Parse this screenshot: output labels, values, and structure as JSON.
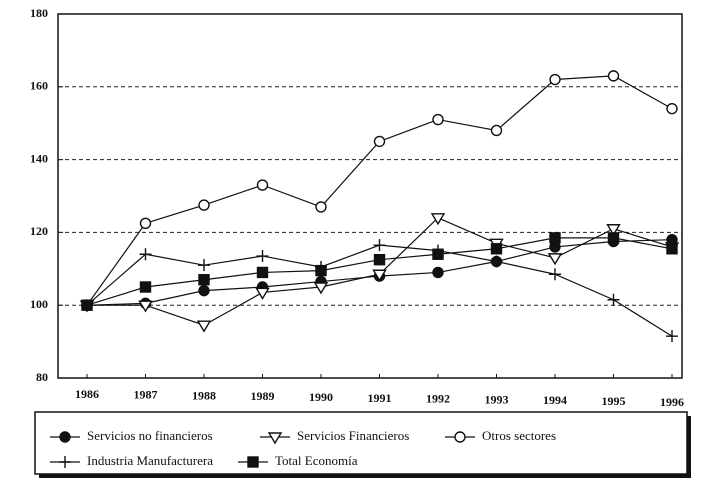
{
  "chart_data": {
    "type": "line",
    "categories": [
      "1986",
      "1987",
      "1988",
      "1989",
      "1990",
      "1991",
      "1992",
      "1993",
      "1994",
      "1995",
      "1996"
    ],
    "ylim": [
      80,
      180
    ],
    "yticks": [
      80,
      100,
      120,
      140,
      160,
      180
    ],
    "grid": true,
    "legend": "bottom",
    "series": [
      {
        "name": "Servicios no financieros",
        "color": "#111111",
        "marker": "filled-circle",
        "values": [
          100,
          100.5,
          104,
          105,
          106.5,
          108,
          109,
          112,
          116,
          117.5,
          118
        ]
      },
      {
        "name": "Servicios Financieros",
        "color": "#111111",
        "marker": "open-triangle-down",
        "values": [
          100,
          100,
          94.5,
          103.5,
          105,
          108.5,
          124,
          117,
          113,
          121,
          116
        ]
      },
      {
        "name": "Otros sectores",
        "color": "#111111",
        "marker": "open-circle",
        "values": [
          100,
          122.5,
          127.5,
          133,
          127,
          145,
          151,
          148,
          162,
          163,
          154
        ]
      },
      {
        "name": "Industria Manufacturera",
        "color": "#111111",
        "marker": "plus",
        "values": [
          100,
          114,
          111,
          113.5,
          110.5,
          116.5,
          115,
          112,
          108.5,
          101.5,
          91.5
        ]
      },
      {
        "name": "Total Economía",
        "color": "#111111",
        "marker": "filled-square",
        "values": [
          100,
          105,
          107,
          109,
          109.5,
          112.5,
          114,
          115.5,
          118.5,
          118.5,
          115.5
        ]
      }
    ]
  }
}
